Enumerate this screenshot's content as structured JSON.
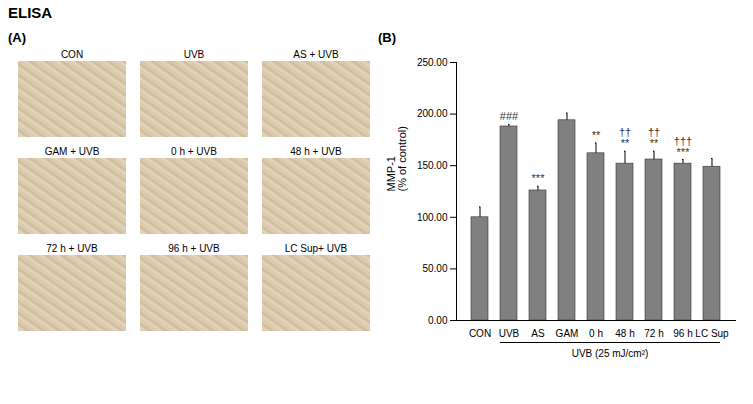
{
  "heading": "ELISA",
  "panel_a": {
    "letter": "(A)",
    "images": [
      "CON",
      "UVB",
      "AS + UVB",
      "GAM + UVB",
      "0 h + UVB",
      "48 h + UVB",
      "72 h + UVB",
      "96 h + UVB",
      "LC Sup+ UVB"
    ]
  },
  "chart_data": {
    "type": "bar",
    "panel_letter": "(B)",
    "categories": [
      "CON",
      "UVB",
      "AS",
      "GAM",
      "0 h",
      "48 h",
      "72 h",
      "96 h",
      "LC Sup"
    ],
    "values": [
      100,
      188,
      126,
      194,
      162,
      152,
      156,
      152,
      149
    ],
    "errors": [
      10,
      2,
      4,
      7,
      10,
      12,
      8,
      4,
      8
    ],
    "color": "#808080",
    "y_label": [
      "MMP-1",
      "(% of control)"
    ],
    "ylim": [
      0,
      250
    ],
    "yticks": [
      {
        "value": 0,
        "label": "0.00"
      },
      {
        "value": 50,
        "label": "50.00"
      },
      {
        "value": 100,
        "label": "100.00"
      },
      {
        "value": 150,
        "label": "150.00"
      },
      {
        "value": 200,
        "label": "200.00"
      },
      {
        "value": 250,
        "label": "250.00"
      }
    ],
    "grid": false,
    "annotations": [
      {
        "category": "UVB",
        "lines": [
          "###"
        ]
      },
      {
        "category": "AS",
        "lines": [
          "***"
        ]
      },
      {
        "category": "0 h",
        "lines": [
          "**"
        ]
      },
      {
        "category": "48 h",
        "lines": [
          "††",
          "**"
        ]
      },
      {
        "category": "72 h",
        "lines": [
          "††",
          "**"
        ]
      },
      {
        "category": "96 h",
        "lines": [
          "†††",
          "***"
        ]
      }
    ],
    "group_label": {
      "text": "UVB (25 mJ/cm²)",
      "from": "UVB",
      "to": "LC Sup"
    }
  }
}
